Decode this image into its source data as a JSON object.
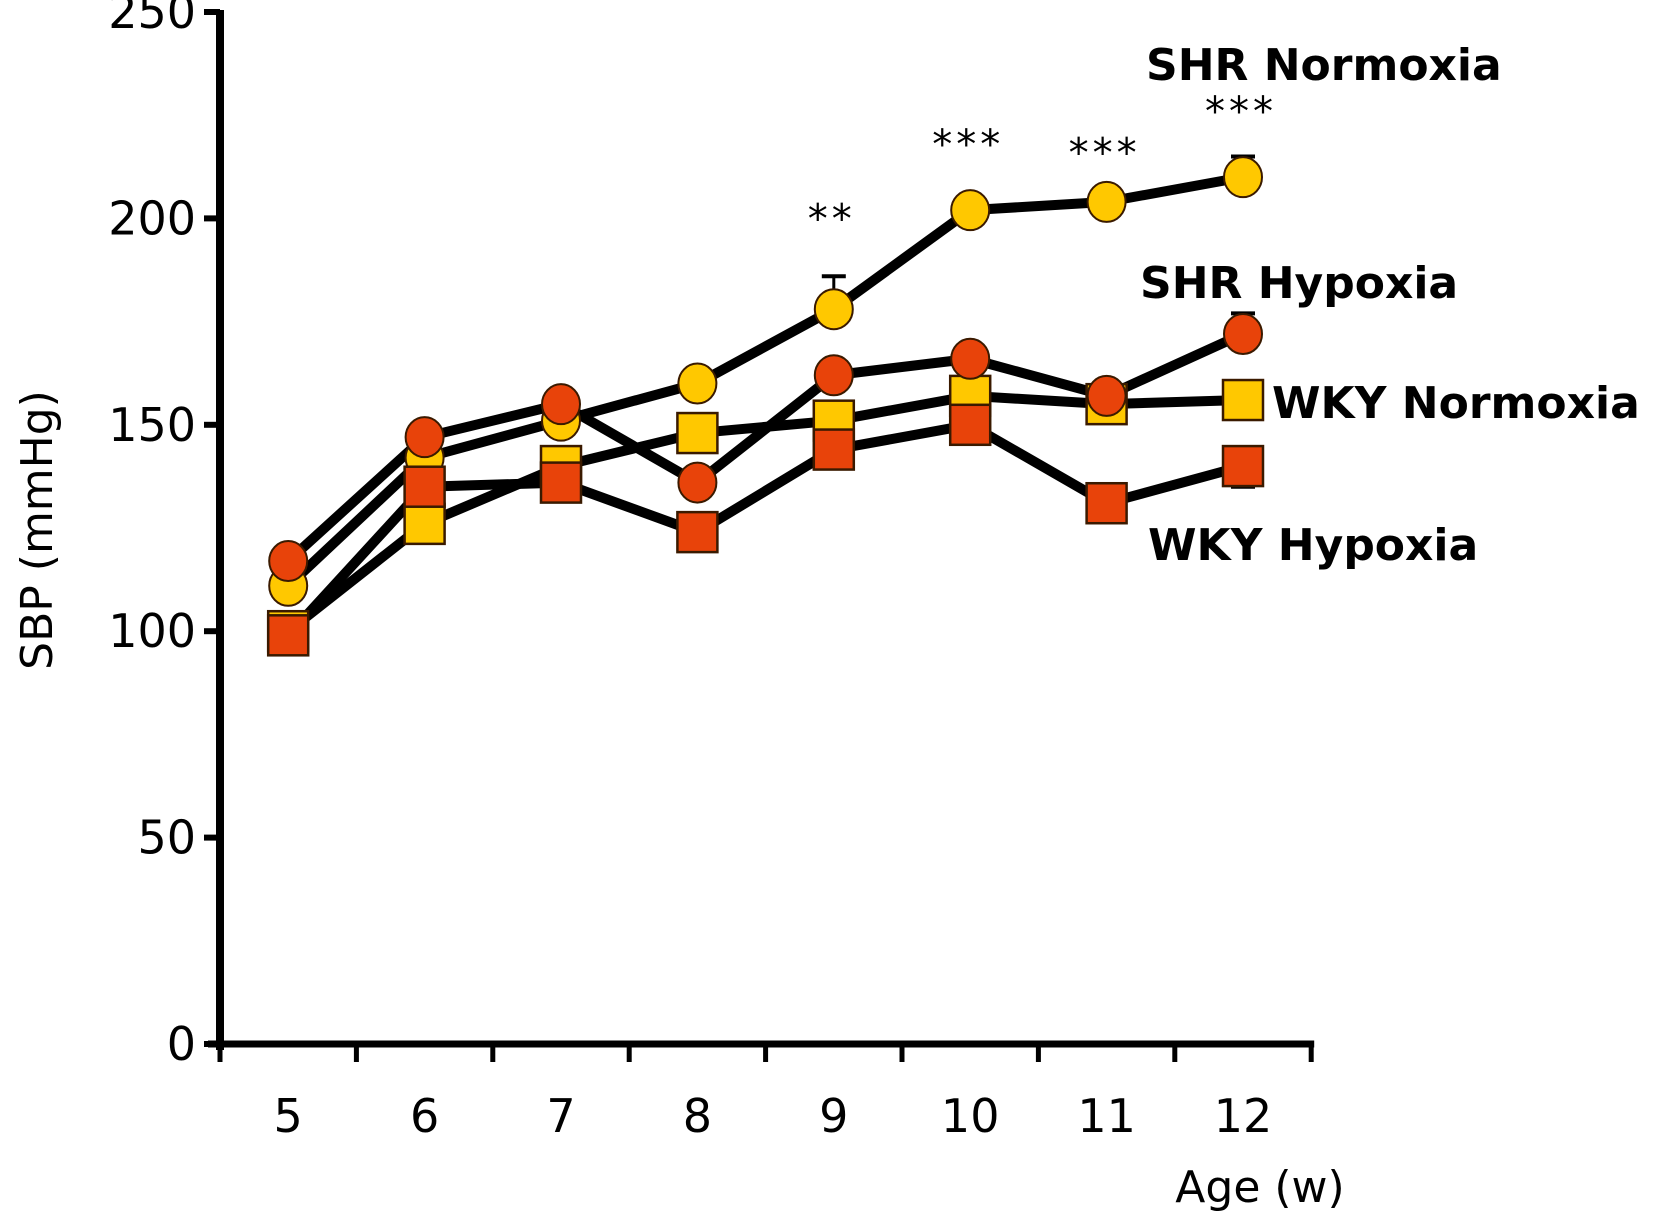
{
  "chart_data": {
    "type": "line",
    "title": "",
    "xlabel": "Age (w)",
    "ylabel": "SBP (mmHg)",
    "x": [
      5,
      6,
      7,
      8,
      9,
      10,
      11,
      12
    ],
    "x_tick_labels": [
      "5",
      "6",
      "7",
      "8",
      "9",
      "10",
      "11",
      "12"
    ],
    "ylim": [
      0,
      250
    ],
    "y_ticks": [
      0,
      50,
      100,
      150,
      200,
      250
    ],
    "y_tick_labels": [
      "0",
      "50",
      "100",
      "150",
      "200",
      "250"
    ],
    "grid": false,
    "legend": "inline-right",
    "colors": {
      "yellow": "#FFC800",
      "red": "#E8430A",
      "line": "#000000"
    },
    "series": [
      {
        "name": "SHR Normoxia",
        "marker": "circle",
        "color": "#FFC800",
        "values": [
          111,
          142,
          151,
          160,
          178,
          202,
          204,
          210
        ],
        "errors": [
          0,
          0,
          0,
          3,
          8,
          1,
          0,
          5
        ]
      },
      {
        "name": "SHR Hypoxia",
        "marker": "circle",
        "color": "#E8430A",
        "values": [
          117,
          147,
          155,
          136,
          162,
          166,
          157,
          172
        ],
        "errors": [
          1,
          3,
          0,
          0,
          3,
          0,
          3,
          5
        ]
      },
      {
        "name": "WKY Normoxia",
        "marker": "square",
        "color": "#FFC800",
        "values": [
          100,
          126,
          140,
          148,
          151,
          157,
          155,
          156
        ],
        "errors": [
          0,
          4,
          3,
          0,
          0,
          0,
          4,
          0
        ]
      },
      {
        "name": "WKY Hypoxia",
        "marker": "square",
        "color": "#E8430A",
        "values": [
          99,
          135,
          136,
          124,
          144,
          150,
          131,
          140
        ],
        "errors": [
          0,
          0,
          2,
          0,
          0,
          0,
          0,
          5
        ]
      }
    ],
    "annotations": [
      {
        "x": 9,
        "text": "**",
        "value": 200
      },
      {
        "x": 10,
        "text": "***",
        "value": 218
      },
      {
        "x": 11,
        "text": "***",
        "value": 216
      },
      {
        "x": 12,
        "text": "***",
        "value": 226
      }
    ]
  }
}
